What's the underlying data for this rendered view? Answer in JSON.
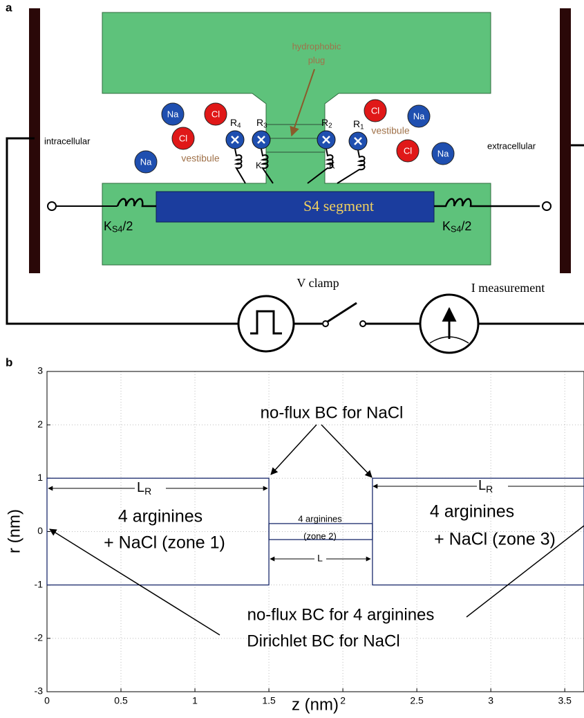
{
  "panel_a": {
    "label": "a",
    "hydrophobic_plug": [
      "hydrophobic",
      "plug"
    ],
    "vestibule_left": "vestibule",
    "vestibule_right": "vestibule",
    "intracellular": "intracellular",
    "extracellular": "extracellular",
    "s4_segment": "S4 segment",
    "spring_left": {
      "base": "K",
      "sub": "S4",
      "tail": "/2"
    },
    "spring_right": {
      "base": "K",
      "sub": "S4",
      "tail": "/2"
    },
    "arginines": [
      {
        "base": "R",
        "sub": "4"
      },
      {
        "base": "R",
        "sub": "3"
      },
      {
        "base": "R",
        "sub": "2"
      },
      {
        "base": "R",
        "sub": "1"
      }
    ],
    "spring_k": [
      "K",
      "K"
    ],
    "ions": [
      "Na",
      "Cl",
      "Cl",
      "Na",
      "Cl",
      "Na",
      "Cl",
      "Na"
    ],
    "v_clamp": "V clamp",
    "i_measurement": "I measurement"
  },
  "panel_b": {
    "label": "b",
    "xlabel": "z (nm)",
    "ylabel": "r (nm)",
    "xlim": [
      0,
      3.63
    ],
    "ylim": [
      -3,
      3
    ],
    "xticks": [
      0,
      0.5,
      1,
      1.5,
      2,
      2.5,
      3,
      3.5
    ],
    "yticks": [
      -3,
      -2,
      -1,
      0,
      1,
      2,
      3
    ],
    "grid": true,
    "zones": [
      {
        "z": [
          0,
          1.5
        ],
        "r": [
          -1,
          1
        ]
      },
      {
        "z": [
          1.5,
          2.2
        ],
        "r": [
          -0.15,
          0.15
        ]
      },
      {
        "z": [
          2.2,
          3.63
        ],
        "r": [
          -1,
          1
        ]
      }
    ],
    "top_note": "no-flux BC for NaCl",
    "lr_left": {
      "base": "L",
      "sub": "R"
    },
    "lr_right": {
      "base": "L",
      "sub": "R"
    },
    "zone1": [
      "4 arginines",
      "+ NaCl (zone 1)"
    ],
    "zone2": [
      "4 arginines",
      "(zone 2)"
    ],
    "zone3": [
      "4 arginines",
      "+ NaCl (zone 3)"
    ],
    "l_label": "L",
    "bottom_note": [
      "no-flux BC for 4 arginines",
      "Dirichlet BC for NaCl"
    ]
  }
}
